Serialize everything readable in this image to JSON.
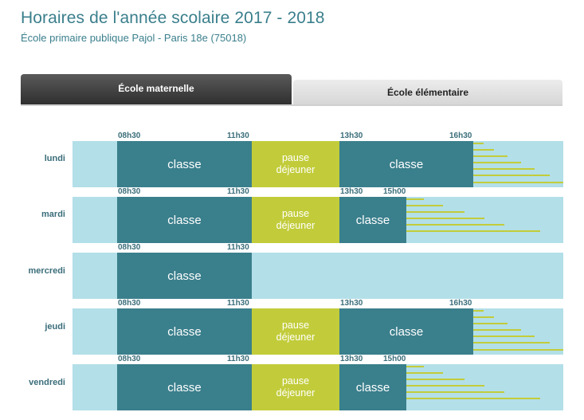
{
  "header": {
    "title": "Horaires de l'année scolaire 2017 - 2018",
    "subtitle": "École primaire publique Pajol - Paris 18e (75018)"
  },
  "tabs": [
    {
      "label": "École maternelle",
      "active": true
    },
    {
      "label": "École élémentaire",
      "active": false
    }
  ],
  "labels": {
    "classe": "classe",
    "pause_l1": "pause",
    "pause_l2": "déjeuner"
  },
  "days": [
    {
      "name": "lundi",
      "times": [
        "08h30",
        "11h30",
        "13h30",
        "16h30"
      ]
    },
    {
      "name": "mardi",
      "times": [
        "08h30",
        "11h30",
        "13h30",
        "15h00"
      ]
    },
    {
      "name": "mercredi",
      "times": [
        "08h30",
        "11h30"
      ]
    },
    {
      "name": "jeudi",
      "times": [
        "08h30",
        "11h30",
        "13h30",
        "16h30"
      ]
    },
    {
      "name": "vendredi",
      "times": [
        "08h30",
        "11h30",
        "13h30",
        "15h00"
      ]
    }
  ],
  "colors": {
    "classe": "#3a7f8c",
    "pause": "#c2cc3a",
    "background": "#b3dfe8"
  }
}
